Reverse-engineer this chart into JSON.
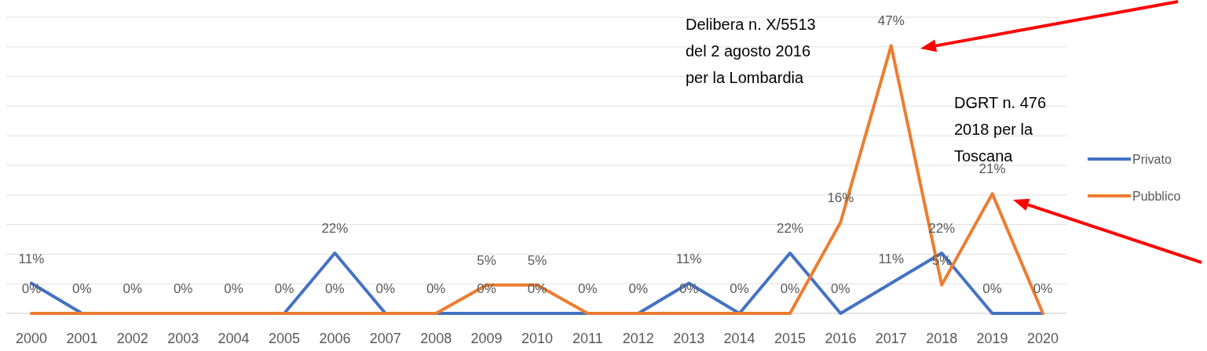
{
  "chart_data": {
    "type": "line",
    "categories": [
      "2000",
      "2001",
      "2002",
      "2003",
      "2004",
      "2005",
      "2006",
      "2007",
      "2008",
      "2009",
      "2010",
      "2011",
      "2012",
      "2013",
      "2014",
      "2015",
      "2016",
      "2017",
      "2018",
      "2019",
      "2020"
    ],
    "series": [
      {
        "name": "Privato",
        "color": "#4472c4",
        "axis": "y2",
        "values": [
          11,
          0,
          0,
          0,
          0,
          0,
          22,
          0,
          0,
          0,
          0,
          0,
          0,
          11,
          0,
          22,
          0,
          11,
          22,
          0,
          0
        ],
        "value_labels": [
          "11%",
          "0%",
          "0%",
          "0%",
          "0%",
          "0%",
          "22%",
          "0%",
          "0%",
          "0%",
          "0%",
          "0%",
          "0%",
          "11%",
          "0%",
          "22%",
          "0%",
          "11%",
          "22%",
          "0%",
          "0%"
        ]
      },
      {
        "name": "Pubblico",
        "color": "#ed7d31",
        "values": [
          0,
          0,
          0,
          0,
          0,
          0,
          0,
          0,
          0,
          5,
          5,
          0,
          0,
          0,
          0,
          0,
          16,
          47,
          5,
          21,
          0
        ],
        "value_labels": [
          "0%",
          null,
          null,
          null,
          null,
          null,
          "0%",
          null,
          null,
          "5%",
          "5%",
          null,
          null,
          "0%",
          null,
          "0%",
          "16%",
          "47%",
          "5%",
          "21%",
          null
        ]
      }
    ],
    "ylim": [
      0,
      52
    ],
    "yticks": [
      {
        "value": 0,
        "label": null
      },
      {
        "value": 5.2,
        "label": null
      },
      {
        "value": 10.4,
        "label": null
      },
      {
        "value": 15.6,
        "label": null
      },
      {
        "value": 20.8,
        "label": null
      },
      {
        "value": 26,
        "label": null
      },
      {
        "value": 31.2,
        "label": null
      },
      {
        "value": 36.4,
        "label": null
      },
      {
        "value": 41.6,
        "label": null
      },
      {
        "value": 46.8,
        "label": null
      },
      {
        "value": 52,
        "label": null
      }
    ],
    "y2lim": [
      0,
      108
    ],
    "tick_labels": "x",
    "grid": "y",
    "legend": "right",
    "marker": "none",
    "line_style": "solid",
    "annotations": [
      "Delibera n. X/5513\ndel 2 agosto 2016\nper la Lombardia",
      "DGRT n. 476\n2018 per la\nToscana"
    ]
  }
}
